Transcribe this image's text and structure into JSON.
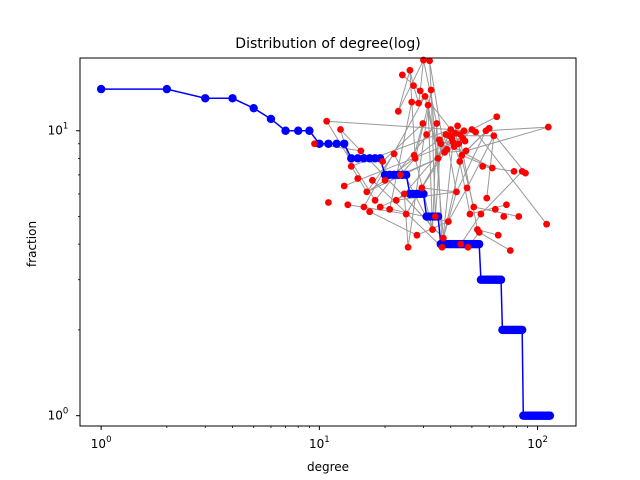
{
  "chart_data": {
    "type": "line",
    "title": "Distribution of degree(log)",
    "xlabel": "degree",
    "ylabel": "fraction",
    "xscale": "log",
    "yscale": "log",
    "xlim": [
      0.8,
      150
    ],
    "ylim": [
      0.92,
      18
    ],
    "grid": false,
    "x_ticks": [
      {
        "value": 1,
        "base": "10",
        "exp": "0"
      },
      {
        "value": 10,
        "base": "10",
        "exp": "1"
      },
      {
        "value": 100,
        "base": "10",
        "exp": "2"
      }
    ],
    "y_ticks": [
      {
        "value": 1,
        "base": "10",
        "exp": "0"
      },
      {
        "value": 10,
        "base": "10",
        "exp": "1"
      }
    ],
    "colors": {
      "series": "#0000ff",
      "nodes": "#ff0000",
      "edges": "#999999"
    },
    "series": [
      {
        "x": [
          1,
          2,
          3,
          4,
          5,
          6,
          7,
          8,
          9,
          10,
          11,
          12,
          13,
          14,
          15,
          16,
          17,
          18,
          19,
          20,
          21,
          22,
          23,
          24,
          25,
          26,
          27,
          28,
          29,
          30,
          31,
          32,
          33,
          34,
          35,
          36,
          37,
          38,
          39,
          40,
          41,
          42,
          43,
          44,
          45,
          46,
          47,
          48,
          49,
          50,
          51,
          52,
          53,
          54,
          55,
          56,
          57,
          58,
          59,
          60,
          61,
          62,
          63,
          64,
          65,
          66,
          67,
          68,
          69,
          70,
          71,
          72,
          73,
          74,
          75,
          76,
          77,
          78,
          79,
          80,
          81,
          82,
          83,
          84,
          85,
          86,
          87,
          88,
          89,
          90,
          91,
          92,
          93,
          94,
          95,
          96,
          97,
          98,
          99,
          100,
          101,
          102,
          103,
          104,
          105,
          106,
          107,
          108,
          109,
          110,
          111,
          112,
          113,
          114
        ],
        "y": [
          14,
          14,
          13,
          13,
          12,
          11,
          10,
          10,
          10,
          9,
          9,
          9,
          9,
          8,
          8,
          8,
          8,
          8,
          8,
          7,
          7,
          7,
          7,
          7,
          7,
          6,
          6,
          6,
          6,
          6,
          5,
          5,
          5,
          5,
          5,
          4,
          4,
          4,
          4,
          4,
          4,
          4,
          4,
          4,
          4,
          4,
          4,
          4,
          4,
          4,
          4,
          4,
          4,
          4,
          3,
          3,
          3,
          3,
          3,
          3,
          3,
          3,
          3,
          3,
          3,
          3,
          3,
          3,
          2,
          2,
          2,
          2,
          2,
          2,
          2,
          2,
          2,
          2,
          2,
          2,
          2,
          2,
          2,
          2,
          2,
          1,
          1,
          1,
          1,
          1,
          1,
          1,
          1,
          1,
          1,
          1,
          1,
          1,
          1,
          1,
          1,
          1,
          1,
          1,
          1,
          1,
          1,
          1,
          1,
          1,
          1,
          1,
          1,
          1
        ]
      }
    ],
    "network_overlay": {
      "nodes": [
        [
          10.8,
          10.8
        ],
        [
          11,
          5.6
        ],
        [
          12.5,
          10.1
        ],
        [
          13,
          6.4
        ],
        [
          13.5,
          5.5
        ],
        [
          14,
          7.5
        ],
        [
          15,
          6.8
        ],
        [
          15.5,
          8.5
        ],
        [
          16,
          5.4
        ],
        [
          16.5,
          6.1
        ],
        [
          17,
          5.2
        ],
        [
          17.5,
          6.7
        ],
        [
          18,
          5.7
        ],
        [
          19,
          5.4
        ],
        [
          20,
          6.7
        ],
        [
          21,
          5.3
        ],
        [
          22,
          8.3
        ],
        [
          22.5,
          5.7
        ],
        [
          23,
          11.7
        ],
        [
          23.5,
          7.0
        ],
        [
          24,
          15.7
        ],
        [
          24.5,
          6.0
        ],
        [
          25,
          5.1
        ],
        [
          25.5,
          3.9
        ],
        [
          26,
          16.3
        ],
        [
          26.5,
          12.6
        ],
        [
          27,
          14.4
        ],
        [
          27.5,
          8.0
        ],
        [
          28,
          4.3
        ],
        [
          28.5,
          12.5
        ],
        [
          29,
          13.8
        ],
        [
          29.5,
          6.3
        ],
        [
          30,
          17.7
        ],
        [
          30.5,
          13.2
        ],
        [
          31,
          9.7
        ],
        [
          31.5,
          12.3
        ],
        [
          32,
          17.6
        ],
        [
          32.5,
          13.9
        ],
        [
          33,
          4.5
        ],
        [
          34,
          5.0
        ],
        [
          34.5,
          10.6
        ],
        [
          35,
          8.0
        ],
        [
          36,
          9.0
        ],
        [
          36.5,
          3.9
        ],
        [
          37,
          4.2
        ],
        [
          37.5,
          8.4
        ],
        [
          38,
          9.7
        ],
        [
          39,
          4.8
        ],
        [
          40,
          10.1
        ],
        [
          40.5,
          9.4
        ],
        [
          41,
          9.1
        ],
        [
          42,
          9.8
        ],
        [
          42.5,
          6.1
        ],
        [
          43,
          10.4
        ],
        [
          44,
          7.8
        ],
        [
          44.5,
          4.0
        ],
        [
          45,
          8.2
        ],
        [
          45.5,
          9.4
        ],
        [
          46,
          10.0
        ],
        [
          47,
          8.5
        ],
        [
          47.5,
          6.3
        ],
        [
          48,
          3.9
        ],
        [
          49,
          5.1
        ],
        [
          50,
          10.1
        ],
        [
          51,
          5.4
        ],
        [
          52,
          9.9
        ],
        [
          53,
          4.5
        ],
        [
          54,
          4.4
        ],
        [
          55,
          5.1
        ],
        [
          56,
          7.5
        ],
        [
          58,
          10.0
        ],
        [
          60,
          10.2
        ],
        [
          62,
          7.4
        ],
        [
          63,
          9.6
        ],
        [
          64,
          5.3
        ],
        [
          65,
          11.2
        ],
        [
          66,
          4.3
        ],
        [
          70,
          5.0
        ],
        [
          72,
          5.5
        ],
        [
          75,
          3.8
        ],
        [
          78,
          7.2
        ],
        [
          82,
          5.0
        ],
        [
          85,
          7.2
        ],
        [
          88,
          7.1
        ],
        [
          110,
          4.7
        ],
        [
          112,
          10.3
        ],
        [
          35.5,
          9.3
        ],
        [
          39.5,
          9.6
        ],
        [
          43.5,
          9.0
        ],
        [
          46.5,
          9.2
        ],
        [
          41.5,
          8.8
        ],
        [
          38.5,
          8.6
        ],
        [
          27.2,
          8.2
        ],
        [
          29.8,
          10.6
        ],
        [
          19.5,
          7.8
        ],
        [
          9.5,
          9.0
        ],
        [
          58.5,
          5.8
        ],
        [
          44.2,
          9.7
        ]
      ],
      "edges": [
        [
          0,
          48
        ],
        [
          0,
          12
        ],
        [
          2,
          44
        ],
        [
          3,
          50
        ],
        [
          4,
          22
        ],
        [
          5,
          48
        ],
        [
          7,
          44
        ],
        [
          8,
          33
        ],
        [
          9,
          41
        ],
        [
          10,
          28
        ],
        [
          11,
          43
        ],
        [
          12,
          40
        ],
        [
          13,
          47
        ],
        [
          14,
          46
        ],
        [
          15,
          25
        ],
        [
          16,
          38
        ],
        [
          17,
          52
        ],
        [
          18,
          32
        ],
        [
          19,
          41
        ],
        [
          20,
          30
        ],
        [
          21,
          49
        ],
        [
          22,
          53
        ],
        [
          23,
          37
        ],
        [
          24,
          26
        ],
        [
          25,
          29
        ],
        [
          26,
          33
        ],
        [
          27,
          38
        ],
        [
          28,
          47
        ],
        [
          29,
          30
        ],
        [
          30,
          32
        ],
        [
          31,
          52
        ],
        [
          32,
          40
        ],
        [
          33,
          41
        ],
        [
          34,
          40
        ],
        [
          35,
          38
        ],
        [
          36,
          45
        ],
        [
          37,
          39
        ],
        [
          38,
          40
        ],
        [
          39,
          42
        ],
        [
          40,
          43
        ],
        [
          41,
          46
        ],
        [
          42,
          57
        ],
        [
          43,
          50
        ],
        [
          44,
          56
        ],
        [
          45,
          49
        ],
        [
          46,
          52
        ],
        [
          47,
          60
        ],
        [
          48,
          58
        ],
        [
          49,
          54
        ],
        [
          50,
          63
        ],
        [
          51,
          64
        ],
        [
          52,
          70
        ],
        [
          53,
          66
        ],
        [
          54,
          62
        ],
        [
          55,
          68
        ],
        [
          56,
          72
        ],
        [
          57,
          63
        ],
        [
          58,
          65
        ],
        [
          59,
          71
        ],
        [
          60,
          73
        ],
        [
          61,
          67
        ],
        [
          62,
          78
        ],
        [
          63,
          75
        ],
        [
          64,
          81
        ],
        [
          65,
          84
        ],
        [
          66,
          76
        ],
        [
          67,
          79
        ],
        [
          68,
          82
        ],
        [
          69,
          80
        ],
        [
          70,
          85
        ],
        [
          71,
          83
        ],
        [
          72,
          86
        ],
        [
          73,
          87
        ],
        [
          18,
          24
        ],
        [
          24,
          27
        ],
        [
          26,
          29
        ],
        [
          29,
          33
        ],
        [
          33,
          48
        ],
        [
          48,
          51
        ],
        [
          51,
          56
        ],
        [
          56,
          71
        ],
        [
          36,
          37
        ],
        [
          37,
          44
        ],
        [
          44,
          52
        ],
        [
          2,
          5
        ],
        [
          5,
          9
        ],
        [
          9,
          14
        ],
        [
          14,
          19
        ],
        [
          19,
          27
        ],
        [
          27,
          35
        ],
        [
          35,
          41
        ],
        [
          41,
          48
        ],
        [
          13,
          31
        ],
        [
          31,
          45
        ],
        [
          45,
          59
        ],
        [
          59,
          85
        ],
        [
          88,
          89
        ],
        [
          89,
          90
        ],
        [
          90,
          91
        ],
        [
          92,
          93
        ],
        [
          93,
          94
        ],
        [
          95,
          7
        ],
        [
          96,
          73
        ],
        [
          97,
          51
        ],
        [
          9,
          16
        ],
        [
          17,
          21
        ],
        [
          21,
          23
        ]
      ]
    }
  }
}
